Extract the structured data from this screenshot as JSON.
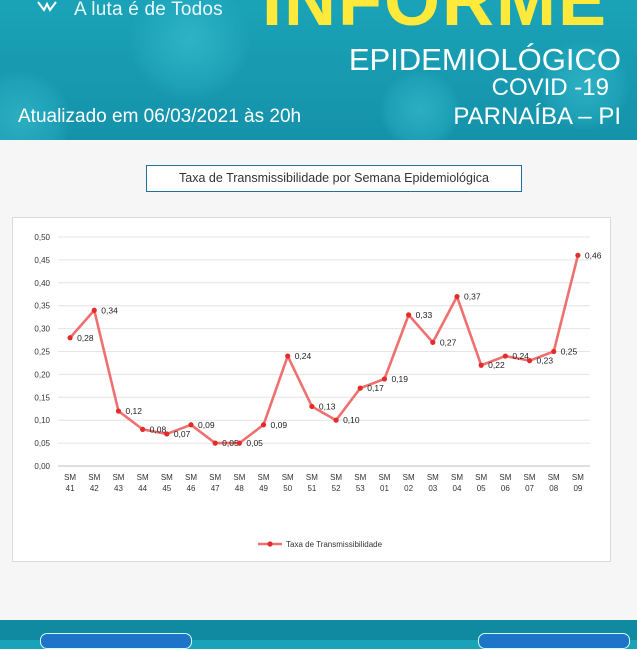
{
  "header": {
    "slogan": "A luta é de Todos",
    "big_title": "INFORME",
    "subtitle1": "EPIDEMIOLÓGICO",
    "subtitle2": "COVID -19",
    "subtitle3": "PARNAÍBA – PI",
    "updated": "Atualizado em 06/03/2021 às 20h"
  },
  "chart_data": {
    "type": "line",
    "title": "Taxa de Transmissibilidade por Semana Epidemiológica",
    "categories": [
      "SM 41",
      "SM 42",
      "SM 43",
      "SM 44",
      "SM 45",
      "SM 46",
      "SM 47",
      "SM 48",
      "SM 49",
      "SM 50",
      "SM 51",
      "SM 52",
      "SM 53",
      "SM 01",
      "SM 02",
      "SM 03",
      "SM 04",
      "SM 05",
      "SM 06",
      "SM 07",
      "SM 08",
      "SM 09"
    ],
    "series": [
      {
        "name": "Taxa de Transmissibilidade",
        "values": [
          0.28,
          0.34,
          0.12,
          0.08,
          0.07,
          0.09,
          0.05,
          0.05,
          0.09,
          0.24,
          0.13,
          0.1,
          0.17,
          0.19,
          0.33,
          0.27,
          0.37,
          0.22,
          0.24,
          0.23,
          0.25,
          0.46
        ],
        "labels": [
          "0,28",
          "0,34",
          "0,12",
          "0,08",
          "0,07",
          "0,09",
          "0,05",
          "0,05",
          "0,09",
          "0,24",
          "0,13",
          "0,10",
          "0,17",
          "0,19",
          "0,33",
          "0,27",
          "0,37",
          "0,22",
          "0,24",
          "0,23",
          "0,25",
          "0,46"
        ],
        "color": "#f07070"
      }
    ],
    "y_ticks": [
      "0,00",
      "0,05",
      "0,10",
      "0,15",
      "0,20",
      "0,25",
      "0,30",
      "0,35",
      "0,40",
      "0,45",
      "0,50"
    ],
    "ylim": [
      0,
      0.5
    ],
    "grid": true,
    "legend": "bottom"
  }
}
